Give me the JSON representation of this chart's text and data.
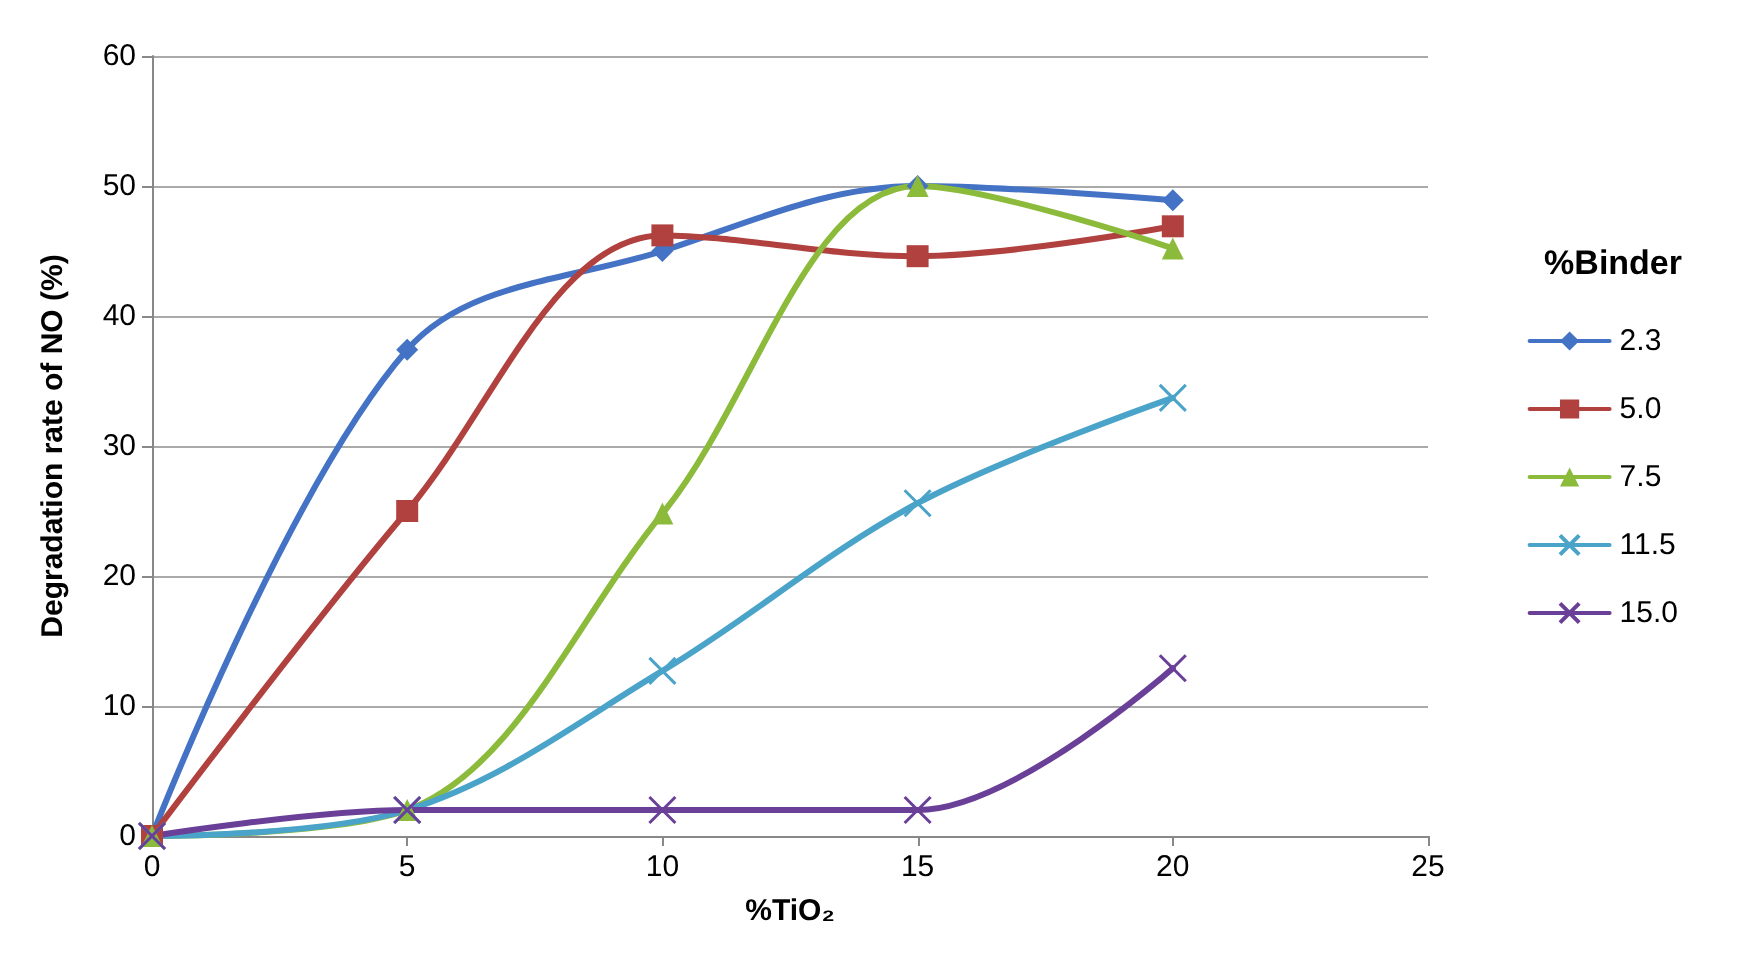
{
  "chart_data": {
    "type": "line",
    "xlabel": "%TiO₂",
    "ylabel": "Degradation rate of NO (%)",
    "legend_title": "%Binder",
    "x": [
      0,
      5,
      10,
      15,
      20
    ],
    "series": [
      {
        "name": "2.3",
        "color": "#4472c4",
        "marker": "diamond",
        "values": [
          0,
          37.4,
          45,
          50,
          48.9
        ]
      },
      {
        "name": "5.0",
        "color": "#b0413e",
        "marker": "square",
        "values": [
          0,
          25,
          46.2,
          44.6,
          46.9
        ]
      },
      {
        "name": "7.5",
        "color": "#8cbb3c",
        "marker": "triangle",
        "values": [
          0,
          2,
          24.8,
          50,
          45.2
        ]
      },
      {
        "name": "11.5",
        "color": "#4aa3c8",
        "marker": "cross",
        "values": [
          0,
          2,
          12.7,
          25.6,
          33.7
        ]
      },
      {
        "name": "15.0",
        "color": "#6a3f98",
        "marker": "cross",
        "values": [
          0,
          2,
          2,
          2,
          12.9
        ]
      }
    ],
    "xlim": [
      0,
      25
    ],
    "xticks": [
      0,
      5,
      10,
      15,
      20,
      25
    ],
    "ylim": [
      0,
      60
    ],
    "yticks": [
      0,
      10,
      20,
      30,
      40,
      50,
      60
    ],
    "grid": "y",
    "legend": "right",
    "line_style": "solid"
  }
}
